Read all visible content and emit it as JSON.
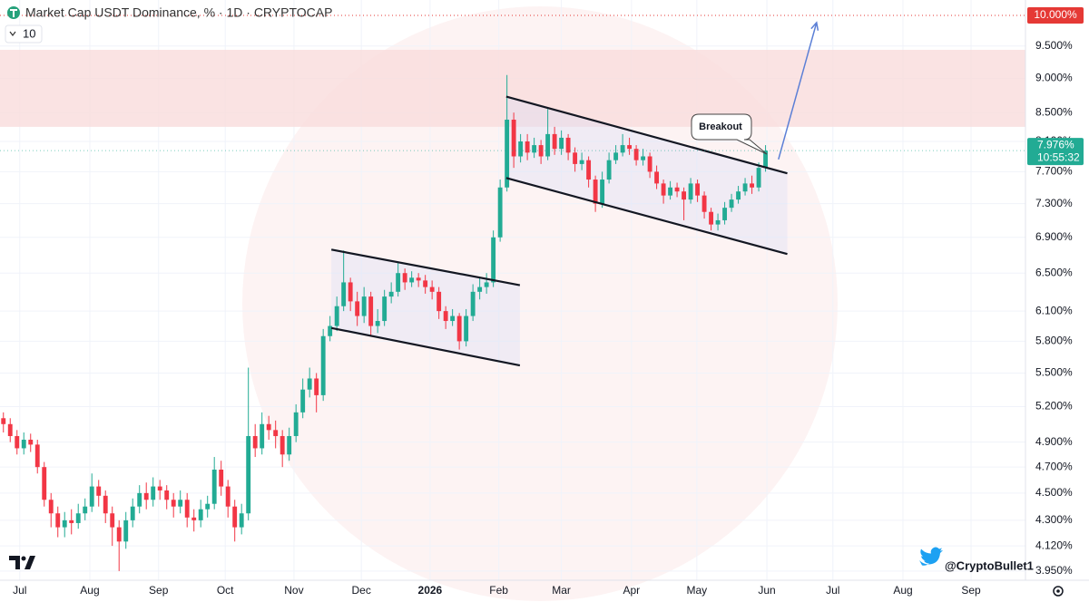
{
  "chart_data": {
    "type": "candlestick",
    "title": "Market Cap USDT Dominance, % · 1D · CRYPTOCAP",
    "indicator_count": "10",
    "log_scale": true,
    "grid": true,
    "up_color": "#22ab94",
    "down_color": "#f23645",
    "ylim": [
      3.89,
      10.26
    ],
    "yticks": [
      {
        "value": 3.95,
        "label": "3.950%"
      },
      {
        "value": 4.12,
        "label": "4.120%"
      },
      {
        "value": 4.3,
        "label": "4.300%"
      },
      {
        "value": 4.5,
        "label": "4.500%"
      },
      {
        "value": 4.7,
        "label": "4.700%"
      },
      {
        "value": 4.9,
        "label": "4.900%"
      },
      {
        "value": 5.2,
        "label": "5.200%"
      },
      {
        "value": 5.5,
        "label": "5.500%"
      },
      {
        "value": 5.8,
        "label": "5.800%"
      },
      {
        "value": 6.1,
        "label": "6.100%"
      },
      {
        "value": 6.5,
        "label": "6.500%"
      },
      {
        "value": 6.9,
        "label": "6.900%"
      },
      {
        "value": 7.3,
        "label": "7.300%"
      },
      {
        "value": 7.7,
        "label": "7.700%"
      },
      {
        "value": 8.1,
        "label": "8.100%"
      },
      {
        "value": 8.5,
        "label": "8.500%"
      },
      {
        "value": 9.0,
        "label": "9.000%"
      },
      {
        "value": 9.5,
        "label": "9.500%"
      }
    ],
    "xlim": [
      -0.5,
      150.2
    ],
    "xticks": [
      {
        "value": 2.4,
        "label": "Jul"
      },
      {
        "value": 12.7,
        "label": "Aug"
      },
      {
        "value": 22.8,
        "label": "Sep"
      },
      {
        "value": 32.6,
        "label": "Oct"
      },
      {
        "value": 42.7,
        "label": "Nov"
      },
      {
        "value": 52.6,
        "label": "Dec"
      },
      {
        "value": 62.7,
        "label": "2026"
      },
      {
        "value": 72.8,
        "label": "Feb"
      },
      {
        "value": 82.0,
        "label": "Mar"
      },
      {
        "value": 92.3,
        "label": "Apr"
      },
      {
        "value": 101.9,
        "label": "May"
      },
      {
        "value": 112.2,
        "label": "Jun"
      },
      {
        "value": 121.9,
        "label": "Jul"
      },
      {
        "value": 132.2,
        "label": "Aug"
      },
      {
        "value": 142.2,
        "label": "Sep"
      }
    ],
    "open": [
      5.1,
      5.05,
      4.95,
      4.85,
      4.92,
      4.88,
      4.7,
      4.45,
      4.35,
      4.25,
      4.3,
      4.28,
      4.35,
      4.4,
      4.55,
      4.48,
      4.35,
      4.25,
      4.15,
      4.3,
      4.4,
      4.5,
      4.45,
      4.55,
      4.52,
      4.45,
      4.4,
      4.45,
      4.32,
      4.3,
      4.38,
      4.42,
      4.68,
      4.55,
      4.4,
      4.25,
      4.35,
      4.95,
      4.85,
      5.05,
      5.0,
      4.95,
      4.8,
      4.95,
      5.15,
      5.35,
      5.45,
      5.3,
      5.85,
      5.95,
      6.15,
      6.4,
      6.2,
      6.05,
      6.25,
      5.95,
      6.0,
      6.25,
      6.3,
      6.5,
      6.4,
      6.45,
      6.42,
      6.35,
      6.3,
      6.1,
      6.0,
      6.05,
      5.8,
      6.05,
      6.3,
      6.35,
      6.4,
      6.9,
      7.5,
      8.4,
      7.9,
      8.1,
      7.95,
      8.05,
      7.9,
      8.2,
      8.0,
      8.15,
      7.95,
      7.8,
      7.85,
      7.6,
      7.3,
      7.6,
      7.85,
      7.95,
      8.05,
      8.0,
      7.85,
      7.9,
      7.7,
      7.55,
      7.4,
      7.5,
      7.45,
      7.35,
      7.55,
      7.4,
      7.2,
      7.05,
      7.1,
      7.25,
      7.35,
      7.45,
      7.55,
      7.5,
      7.75
    ],
    "high": [
      5.15,
      5.1,
      5.0,
      4.98,
      4.97,
      4.92,
      4.74,
      4.5,
      4.4,
      4.36,
      4.38,
      4.42,
      4.46,
      4.65,
      4.6,
      4.52,
      4.4,
      4.3,
      4.36,
      4.46,
      4.56,
      4.58,
      4.62,
      4.6,
      4.56,
      4.5,
      4.52,
      4.5,
      4.38,
      4.45,
      4.48,
      4.78,
      4.75,
      4.6,
      4.45,
      4.42,
      5.55,
      5.05,
      5.15,
      5.12,
      5.08,
      5.0,
      5.02,
      5.22,
      5.45,
      5.55,
      5.5,
      5.92,
      6.05,
      6.25,
      6.75,
      6.45,
      6.3,
      6.35,
      6.3,
      6.12,
      6.32,
      6.4,
      6.62,
      6.55,
      6.52,
      6.5,
      6.48,
      6.42,
      6.35,
      6.15,
      6.12,
      6.08,
      6.12,
      6.38,
      6.45,
      6.5,
      6.98,
      7.6,
      9.05,
      8.5,
      8.2,
      8.2,
      8.15,
      8.12,
      8.55,
      8.3,
      8.25,
      8.2,
      8.02,
      7.95,
      7.9,
      7.65,
      7.7,
      7.95,
      8.05,
      8.2,
      8.15,
      8.05,
      8.0,
      7.95,
      7.78,
      7.6,
      7.58,
      7.56,
      7.5,
      7.62,
      7.6,
      7.45,
      7.25,
      7.18,
      7.32,
      7.42,
      7.52,
      7.62,
      7.65,
      7.82,
      8.05
    ],
    "low": [
      4.98,
      4.9,
      4.8,
      4.8,
      4.82,
      4.65,
      4.4,
      4.25,
      4.18,
      4.18,
      4.2,
      4.24,
      4.3,
      4.36,
      4.4,
      4.28,
      4.12,
      3.95,
      4.1,
      4.25,
      4.35,
      4.38,
      4.4,
      4.45,
      4.38,
      4.32,
      4.35,
      4.25,
      4.22,
      4.25,
      4.32,
      4.38,
      4.48,
      4.32,
      4.15,
      4.2,
      4.3,
      4.78,
      4.8,
      4.92,
      4.85,
      4.7,
      4.75,
      4.9,
      5.1,
      5.28,
      5.15,
      5.25,
      5.8,
      5.9,
      6.1,
      6.1,
      5.95,
      5.98,
      5.85,
      5.88,
      5.95,
      6.18,
      6.25,
      6.32,
      6.35,
      6.35,
      6.28,
      6.22,
      6.02,
      5.92,
      5.95,
      5.72,
      5.75,
      6.0,
      6.22,
      6.28,
      6.35,
      6.85,
      7.45,
      7.75,
      7.82,
      7.85,
      7.88,
      7.8,
      7.85,
      7.92,
      7.92,
      7.85,
      7.7,
      7.72,
      7.5,
      7.2,
      7.25,
      7.55,
      7.8,
      7.9,
      7.92,
      7.78,
      7.78,
      7.62,
      7.48,
      7.3,
      7.35,
      7.38,
      7.1,
      7.3,
      7.32,
      7.12,
      6.98,
      6.98,
      7.05,
      7.2,
      7.3,
      7.4,
      7.42,
      7.45,
      7.7
    ],
    "close": [
      5.05,
      4.95,
      4.85,
      4.92,
      4.88,
      4.7,
      4.45,
      4.35,
      4.25,
      4.3,
      4.28,
      4.35,
      4.4,
      4.55,
      4.48,
      4.35,
      4.25,
      4.15,
      4.3,
      4.4,
      4.5,
      4.45,
      4.55,
      4.52,
      4.45,
      4.4,
      4.45,
      4.32,
      4.3,
      4.38,
      4.42,
      4.68,
      4.55,
      4.4,
      4.25,
      4.35,
      4.95,
      4.85,
      5.05,
      5.0,
      4.95,
      4.8,
      4.95,
      5.15,
      5.35,
      5.45,
      5.3,
      5.85,
      5.95,
      6.15,
      6.4,
      6.2,
      6.05,
      6.25,
      5.95,
      6.0,
      6.25,
      6.3,
      6.5,
      6.4,
      6.45,
      6.42,
      6.35,
      6.3,
      6.1,
      6.0,
      6.05,
      5.8,
      6.05,
      6.3,
      6.35,
      6.4,
      6.9,
      7.5,
      8.4,
      7.9,
      8.1,
      7.95,
      8.05,
      7.9,
      8.2,
      8.0,
      8.15,
      7.95,
      7.8,
      7.85,
      7.6,
      7.3,
      7.6,
      7.85,
      7.95,
      8.05,
      8.0,
      7.85,
      7.9,
      7.7,
      7.55,
      7.4,
      7.5,
      7.45,
      7.35,
      7.55,
      7.4,
      7.2,
      7.05,
      7.1,
      7.25,
      7.35,
      7.45,
      7.55,
      7.5,
      7.75,
      7.976
    ],
    "last_price": {
      "value": 7.976,
      "label": "7.976%"
    },
    "countdown": "10:55:32",
    "target_line": {
      "value": 10.0,
      "label": "10.000%",
      "color": "#e53935"
    },
    "zone": {
      "from": 8.3,
      "to": 9.44,
      "color": "#f9dcdc"
    },
    "channels": [
      {
        "upper": [
          [
            48.2,
            6.76
          ],
          [
            75.9,
            6.37
          ]
        ],
        "lower": [
          [
            48.2,
            5.93
          ],
          [
            75.9,
            5.57
          ]
        ]
      },
      {
        "upper": [
          [
            73.9,
            8.73
          ],
          [
            115.2,
            7.68
          ]
        ],
        "lower": [
          [
            73.9,
            7.62
          ],
          [
            115.2,
            6.71
          ]
        ]
      }
    ],
    "arrow": {
      "points": [
        [
          113.9,
          7.86
        ],
        [
          119.5,
          9.88
        ]
      ],
      "color": "#5b7fd6"
    },
    "annotation": "Breakout",
    "handle": "@CryptoBullet1"
  }
}
